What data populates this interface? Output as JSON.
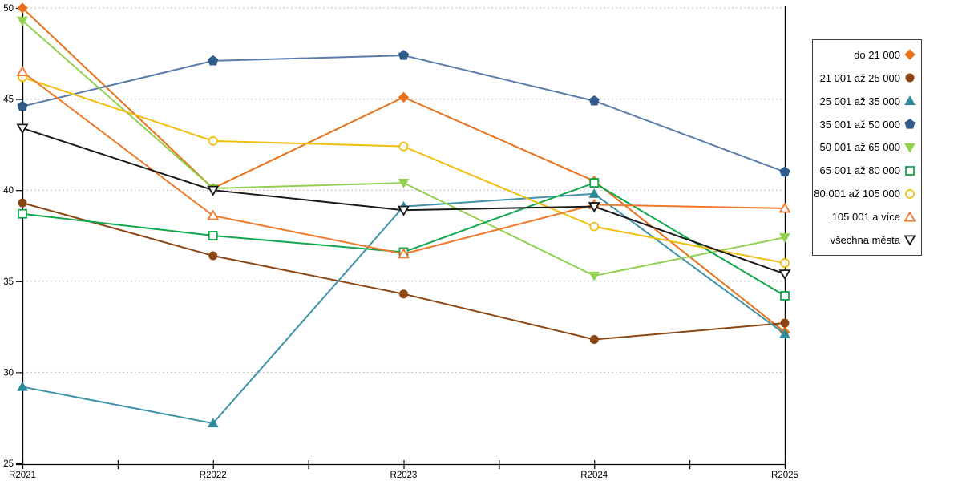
{
  "chart_data": {
    "type": "line",
    "title": "",
    "xlabel": "",
    "ylabel": "",
    "categories": [
      "R2021",
      "R2022",
      "R2023",
      "R2024",
      "R2025"
    ],
    "ylim": [
      25,
      50
    ],
    "yticks": [
      25,
      30,
      35,
      40,
      45,
      50
    ],
    "grid": "horizontal-dashed",
    "legend_position": "right-boxed",
    "series": [
      {
        "name": "do 21 000",
        "color": "#E8711A",
        "marker": "diamond",
        "marker_fill": "filled",
        "values": [
          50.0,
          40.1,
          45.1,
          40.5,
          32.2
        ]
      },
      {
        "name": "21 001 až 25 000",
        "color": "#8C4613",
        "marker": "circle",
        "marker_fill": "filled",
        "values": [
          39.3,
          36.4,
          34.3,
          31.8,
          32.7
        ]
      },
      {
        "name": "25 001 až 35 000",
        "color": "#3E93A8",
        "marker_color": "#2E8B9C",
        "marker": "triangle-up",
        "marker_fill": "filled",
        "values": [
          29.2,
          27.2,
          39.1,
          39.8,
          32.1
        ]
      },
      {
        "name": "35 001 až 50 000",
        "color": "#5B7CA9",
        "marker_color": "#305C8C",
        "marker": "pentagon",
        "marker_fill": "filled",
        "values": [
          44.6,
          47.1,
          47.4,
          44.9,
          41.0
        ]
      },
      {
        "name": "50 001 až 65 000",
        "color": "#92D050",
        "marker": "triangle-down",
        "marker_fill": "filled",
        "values": [
          49.3,
          40.1,
          40.4,
          35.3,
          37.4
        ]
      },
      {
        "name": "65 001 až 80 000",
        "color": "#12A64E",
        "marker": "square",
        "marker_fill": "open",
        "values": [
          38.7,
          37.5,
          36.6,
          40.4,
          34.2
        ]
      },
      {
        "name": "80 001 až 105 000",
        "color": "#F0BE0E",
        "marker": "circle",
        "marker_fill": "open",
        "values": [
          46.2,
          42.7,
          42.4,
          38.0,
          36.0
        ]
      },
      {
        "name": "105 001 a více",
        "color": "#F0792B",
        "marker": "triangle-up",
        "marker_fill": "open",
        "values": [
          46.5,
          38.6,
          36.5,
          39.2,
          39.0
        ]
      },
      {
        "name": "všechna města",
        "color": "#1A1A1A",
        "marker": "triangle-down",
        "marker_fill": "open",
        "values": [
          43.4,
          40.0,
          38.9,
          39.1,
          35.4
        ]
      }
    ],
    "axis_color": "#000000",
    "gridline_color": "#BFBFBF"
  }
}
